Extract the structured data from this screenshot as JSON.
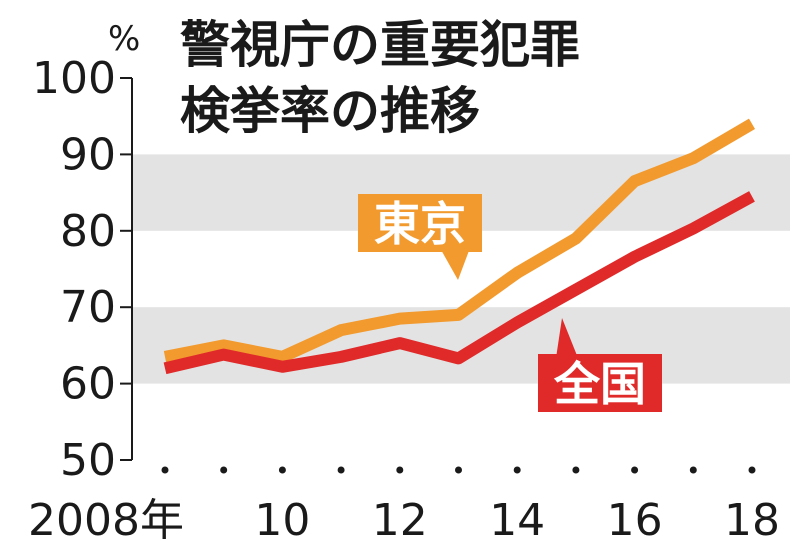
{
  "title_lines": [
    "警視庁の重要犯罪",
    "検挙率の推移"
  ],
  "chart_data": {
    "type": "line",
    "title": "警視庁の重要犯罪検挙率の推移",
    "x_unit_first": "2008年",
    "x": [
      2008,
      2009,
      2010,
      2011,
      2012,
      2013,
      2014,
      2015,
      2016,
      2017,
      2018
    ],
    "x_tick_labels": [
      {
        "x": 2008,
        "label": "2008年"
      },
      {
        "x": 2010,
        "label": "10"
      },
      {
        "x": 2012,
        "label": "12"
      },
      {
        "x": 2014,
        "label": "14"
      },
      {
        "x": 2016,
        "label": "16"
      },
      {
        "x": 2018,
        "label": "18"
      }
    ],
    "y_unit": "%",
    "ylim": [
      50,
      100
    ],
    "y_ticks": [
      50,
      60,
      70,
      80,
      90,
      100
    ],
    "series": [
      {
        "name": "東京",
        "color": "#f29a2e",
        "values": [
          63.5,
          65.0,
          63.5,
          67.0,
          68.5,
          69.0,
          74.5,
          79.0,
          86.5,
          89.5,
          94.0
        ]
      },
      {
        "name": "全国",
        "color": "#e02a2a",
        "values": [
          62.0,
          63.8,
          62.2,
          63.5,
          65.3,
          63.3,
          68.0,
          72.3,
          76.6,
          80.3,
          84.5
        ]
      }
    ],
    "bands": "alternating gray",
    "legend": "inline labels"
  }
}
